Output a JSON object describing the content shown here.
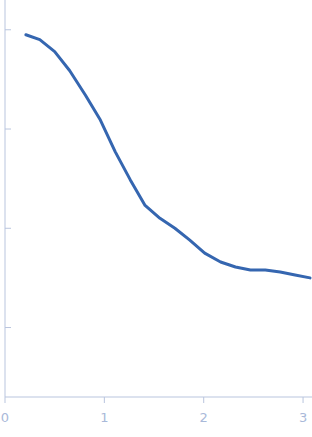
{
  "chart_data": {
    "type": "line",
    "tick_labels": "x",
    "color": "#3566b0",
    "x": [
      0.21,
      0.35,
      0.5,
      0.65,
      0.81,
      0.96,
      1.11,
      1.26,
      1.41,
      1.56,
      1.71,
      1.86,
      2.01,
      2.17,
      2.32,
      2.47,
      2.62,
      2.77,
      2.92,
      3.07
    ],
    "values": [
      3.95,
      3.9,
      3.78,
      3.59,
      3.34,
      3.09,
      2.77,
      2.49,
      2.23,
      2.1,
      2.0,
      1.88,
      1.75,
      1.66,
      1.61,
      1.58,
      1.58,
      1.56,
      1.53,
      1.5
    ],
    "xlim": [
      0,
      3.09
    ],
    "ylim": [
      0.3,
      4.3
    ],
    "xticks": [
      0,
      1,
      2,
      3
    ],
    "yticks": [
      1,
      2,
      3,
      4
    ]
  }
}
